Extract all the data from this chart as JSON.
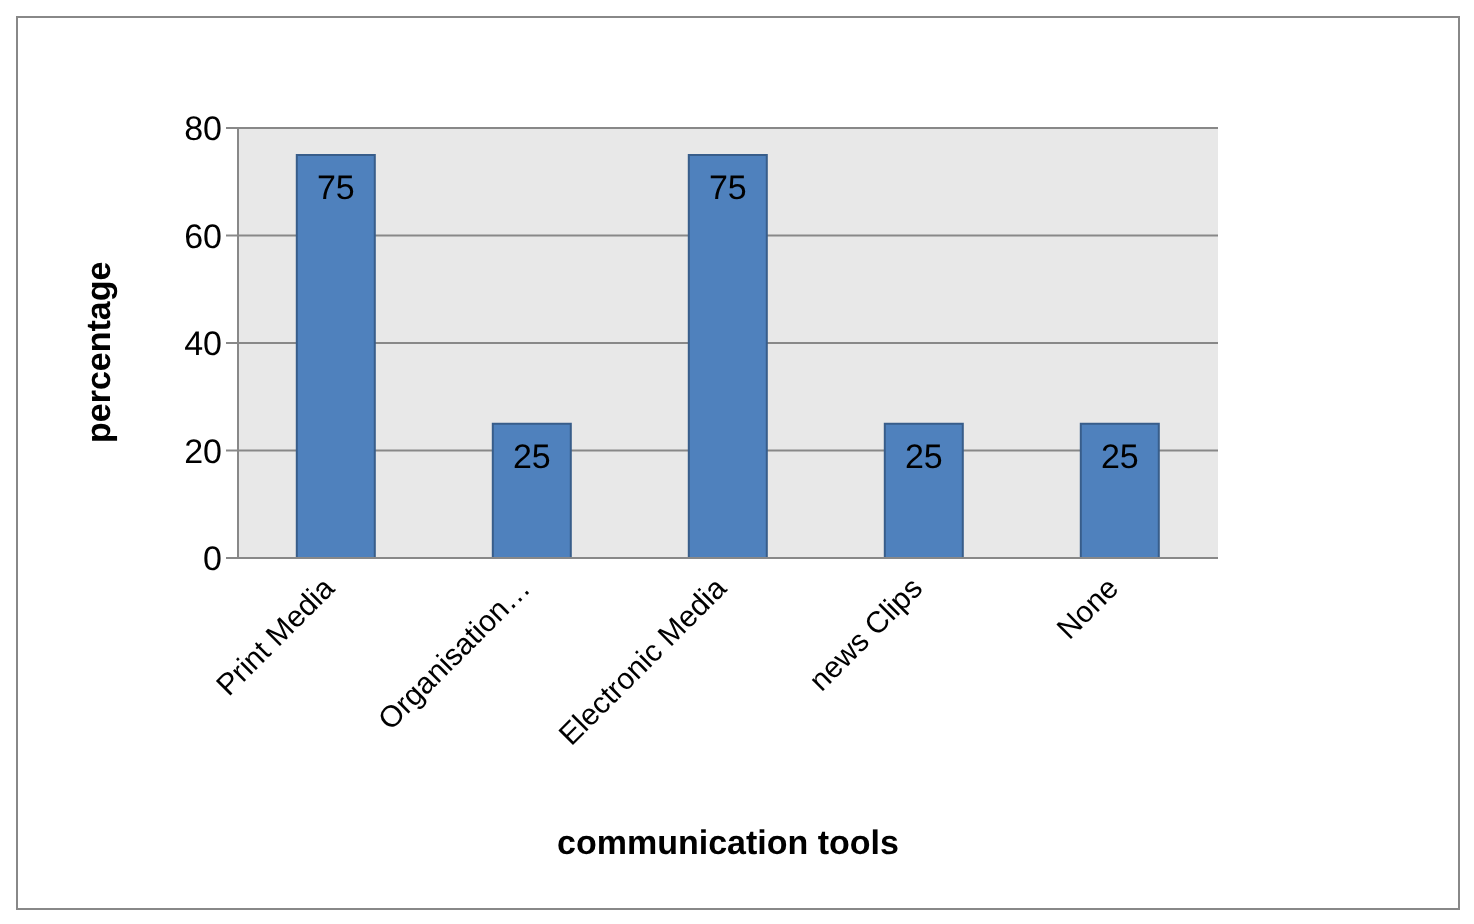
{
  "chart_data": {
    "type": "bar",
    "xlabel": "communication tools",
    "ylabel": "percentage",
    "categories": [
      "Print Media",
      "Organisation…",
      "Electronic Media",
      "news Clips",
      "None"
    ],
    "values": [
      75,
      25,
      75,
      25,
      25
    ],
    "color": "#4f81bd",
    "ylim": [
      0,
      80
    ],
    "yticks": [
      0,
      20,
      40,
      60,
      80
    ],
    "grid": "y",
    "data_labels": true
  }
}
